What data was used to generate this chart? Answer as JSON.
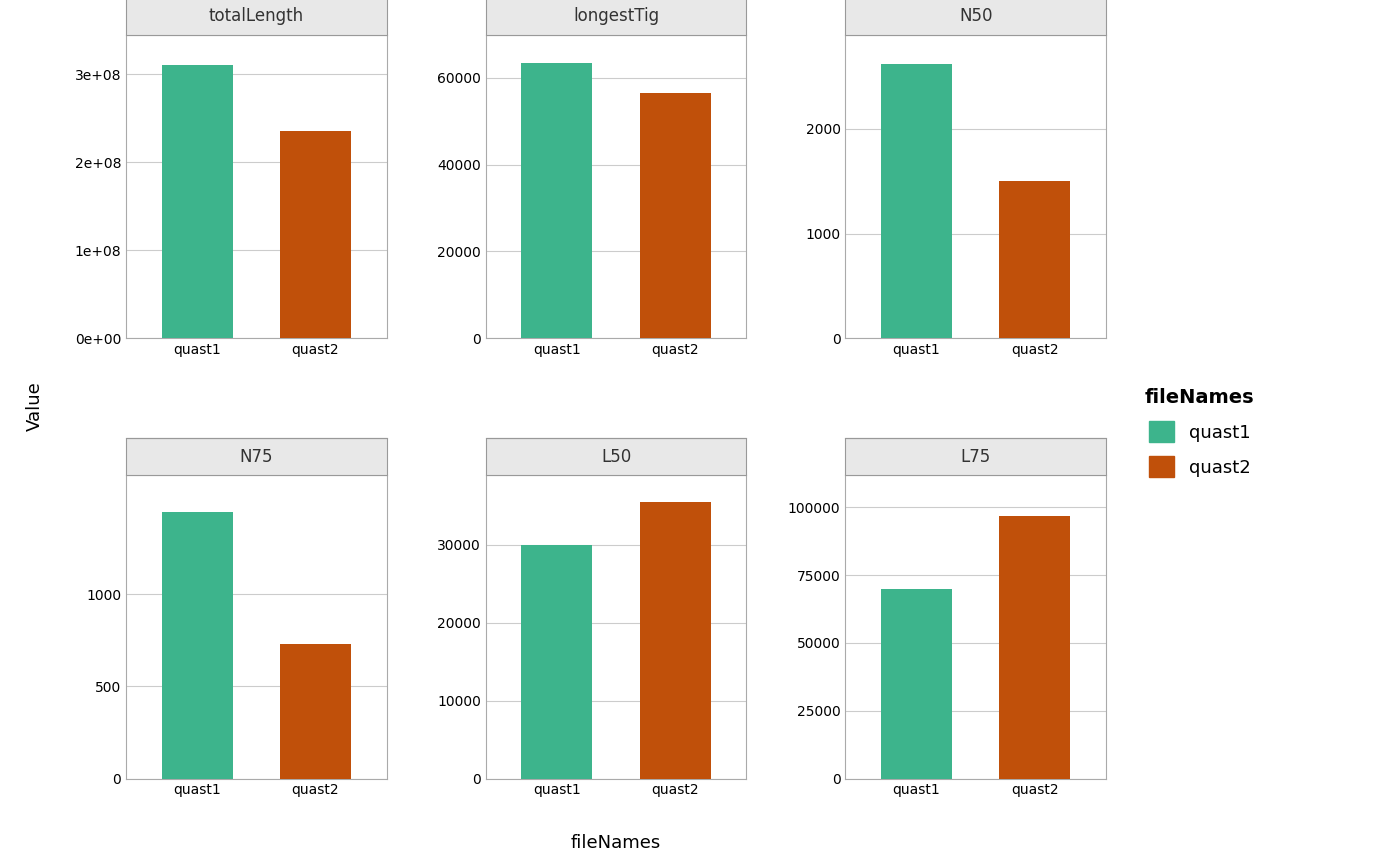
{
  "panels": [
    {
      "title": "totalLength",
      "quast1": 310000000,
      "quast2": 235000000,
      "yticks": [
        0,
        100000000,
        200000000,
        300000000
      ],
      "ytick_labels": [
        "0e+00",
        "1e+08",
        "2e+08",
        "3e+08"
      ],
      "ylim": [
        0,
        345000000
      ]
    },
    {
      "title": "longestTig",
      "quast1": 63500,
      "quast2": 56500,
      "yticks": [
        0,
        20000,
        40000,
        60000
      ],
      "ytick_labels": [
        "0",
        "20000",
        "40000",
        "60000"
      ],
      "ylim": [
        0,
        70000
      ]
    },
    {
      "title": "N50",
      "quast1": 2620,
      "quast2": 1500,
      "yticks": [
        0,
        1000,
        2000
      ],
      "ytick_labels": [
        "0",
        "1000",
        "2000"
      ],
      "ylim": [
        0,
        2900
      ]
    },
    {
      "title": "N75",
      "quast1": 1450,
      "quast2": 730,
      "yticks": [
        0,
        500,
        1000
      ],
      "ytick_labels": [
        "0",
        "500",
        "1000"
      ],
      "ylim": [
        0,
        1650
      ]
    },
    {
      "title": "L50",
      "quast1": 30000,
      "quast2": 35500,
      "yticks": [
        0,
        10000,
        20000,
        30000
      ],
      "ytick_labels": [
        "0",
        "10000",
        "20000",
        "30000"
      ],
      "ylim": [
        0,
        39000
      ]
    },
    {
      "title": "L75",
      "quast1": 70000,
      "quast2": 97000,
      "yticks": [
        0,
        25000,
        50000,
        75000,
        100000
      ],
      "ytick_labels": [
        "0",
        "25000",
        "50000",
        "75000",
        "100000"
      ],
      "ylim": [
        0,
        112000
      ]
    }
  ],
  "categories": [
    "quast1",
    "quast2"
  ],
  "colors": {
    "quast1": "#3DB48C",
    "quast2": "#C0500A"
  },
  "xlabel": "fileNames",
  "ylabel": "Value",
  "legend_title": "fileNames",
  "plot_bg": "#FFFFFF",
  "figure_bg": "#FFFFFF",
  "grid_color": "#CCCCCC",
  "strip_bg": "#E8E8E8",
  "strip_text_color": "#333333",
  "bar_width": 0.6,
  "tick_fontsize": 10,
  "label_fontsize": 13,
  "strip_fontsize": 12,
  "legend_fontsize": 13,
  "legend_title_fontsize": 14
}
